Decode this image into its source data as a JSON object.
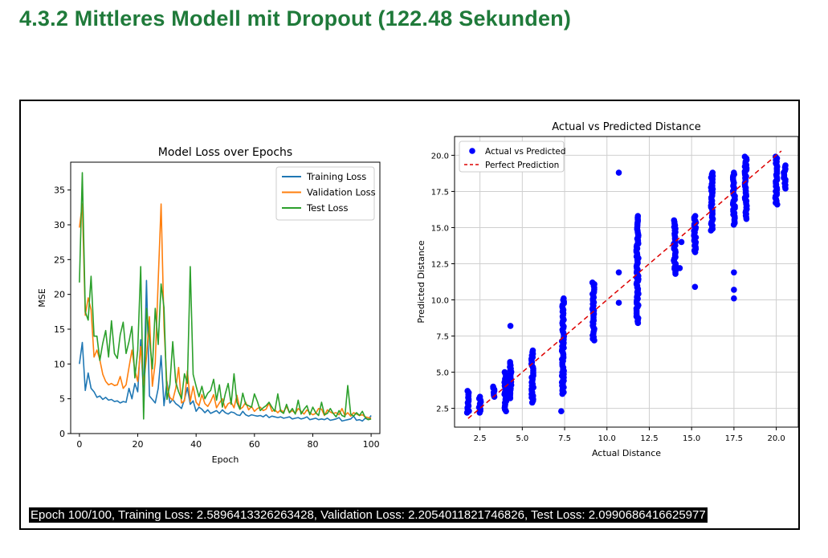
{
  "heading": "4.3.2 Mittleres Modell mit Dropout (122.48 Sekunden)",
  "status_line": "Epoch 100/100, Training Loss: 2.5896413326263428, Validation Loss: 2.2054011821746826, Test Loss: 2.0990686416625977",
  "chart_data": [
    {
      "type": "line",
      "title": "Model Loss over Epochs",
      "xlabel": "Epoch",
      "ylabel": "MSE",
      "xlim": [
        -3,
        103
      ],
      "ylim": [
        0,
        39
      ],
      "xticks": [
        0,
        20,
        40,
        60,
        80,
        100
      ],
      "yticks": [
        0,
        5,
        10,
        15,
        20,
        25,
        30,
        35
      ],
      "legend_position": "top-right",
      "grid": false,
      "series": [
        {
          "name": "Training Loss",
          "color": "#1f77b4",
          "values": [
            10.0,
            13.1,
            6.2,
            8.7,
            6.5,
            6.0,
            5.2,
            5.4,
            4.9,
            5.2,
            4.8,
            4.9,
            4.6,
            4.7,
            4.4,
            4.6,
            4.5,
            6.5,
            5.0,
            7.2,
            6.0,
            13.5,
            5.4,
            22.0,
            5.4,
            4.9,
            4.4,
            6.5,
            11.2,
            4.0,
            7.5,
            4.4,
            4.9,
            4.3,
            4.0,
            3.6,
            4.9,
            6.6,
            4.2,
            4.7,
            3.2,
            3.8,
            3.5,
            3.0,
            3.4,
            2.9,
            3.1,
            3.3,
            2.9,
            3.4,
            3.0,
            2.8,
            3.1,
            3.0,
            2.7,
            2.6,
            3.2,
            2.7,
            2.5,
            2.7,
            2.6,
            2.5,
            2.6,
            2.4,
            2.7,
            2.3,
            2.5,
            2.4,
            2.3,
            2.4,
            2.2,
            2.3,
            2.4,
            2.1,
            2.2,
            2.3,
            2.1,
            2.2,
            2.4,
            2.0,
            2.1,
            2.2,
            2.0,
            2.1,
            2.0,
            2.2,
            1.9,
            2.0,
            2.1,
            2.3,
            1.8,
            1.9,
            2.0,
            2.1,
            2.5,
            1.9,
            2.0,
            1.8,
            2.2,
            2.0,
            2.6
          ]
        },
        {
          "name": "Validation Loss",
          "color": "#ff7f0e",
          "values": [
            29.6,
            33.0,
            17.0,
            19.5,
            17.8,
            11.0,
            12.0,
            10.6,
            8.5,
            7.5,
            7.0,
            7.2,
            6.9,
            7.0,
            8.2,
            6.5,
            7.0,
            9.5,
            12.0,
            9.1,
            7.5,
            12.5,
            7.0,
            11.0,
            16.8,
            6.8,
            10.2,
            22.0,
            33.0,
            15.5,
            6.9,
            5.2,
            4.8,
            6.5,
            9.5,
            4.4,
            4.7,
            9.0,
            4.6,
            6.8,
            4.5,
            4.0,
            5.6,
            4.3,
            3.9,
            4.6,
            5.6,
            3.7,
            4.4,
            5.0,
            3.6,
            4.3,
            4.5,
            3.7,
            5.5,
            3.5,
            3.8,
            4.5,
            3.4,
            3.9,
            3.2,
            3.6,
            3.8,
            3.3,
            3.5,
            4.4,
            3.2,
            3.4,
            3.0,
            3.4,
            3.1,
            3.9,
            3.0,
            3.3,
            2.9,
            3.6,
            3.2,
            2.8,
            3.4,
            3.0,
            2.7,
            2.9,
            3.6,
            3.5,
            2.6,
            3.4,
            3.1,
            2.9,
            3.0,
            2.7,
            3.6,
            2.6,
            3.0,
            2.5,
            3.0,
            2.8,
            2.6,
            2.7,
            2.4,
            2.3,
            2.2
          ]
        },
        {
          "name": "Test Loss",
          "color": "#2ca02c",
          "values": [
            21.7,
            37.5,
            17.5,
            16.3,
            22.6,
            14.0,
            14.0,
            10.5,
            13.0,
            14.8,
            11.0,
            16.2,
            11.5,
            10.8,
            14.2,
            16.0,
            11.5,
            13.2,
            15.4,
            8.0,
            12.0,
            24.0,
            2.1,
            18.0,
            13.7,
            9.3,
            18.0,
            12.8,
            21.5,
            18.1,
            4.9,
            7.0,
            13.2,
            7.4,
            6.0,
            5.0,
            8.6,
            7.2,
            24.0,
            8.5,
            6.8,
            5.3,
            6.8,
            5.0,
            5.8,
            6.2,
            7.8,
            4.8,
            7.0,
            3.8,
            5.7,
            7.2,
            4.2,
            8.6,
            4.5,
            3.5,
            5.8,
            4.2,
            4.0,
            3.8,
            5.7,
            4.6,
            3.3,
            3.7,
            4.0,
            4.5,
            3.8,
            3.2,
            5.7,
            3.2,
            2.9,
            4.2,
            3.0,
            3.6,
            2.8,
            4.8,
            2.8,
            3.5,
            4.0,
            2.7,
            3.8,
            3.0,
            2.6,
            4.5,
            2.7,
            2.9,
            3.6,
            2.9,
            2.4,
            3.3,
            2.6,
            2.4,
            6.9,
            2.8,
            2.5,
            3.0,
            2.6,
            3.2,
            2.3,
            2.0,
            2.1
          ]
        }
      ]
    },
    {
      "type": "scatter",
      "title": "Actual vs Predicted Distance",
      "xlabel": "Actual Distance",
      "ylabel": "Predicted Distance",
      "xlim": [
        1.0,
        21.3
      ],
      "ylim": [
        1.2,
        21.3
      ],
      "xticks": [
        2.5,
        5.0,
        7.5,
        10.0,
        12.5,
        15.0,
        17.5,
        20.0
      ],
      "yticks": [
        2.5,
        5.0,
        7.5,
        10.0,
        12.5,
        15.0,
        17.5,
        20.0
      ],
      "grid": true,
      "legend_position": "top-left",
      "series": [
        {
          "name": "Actual vs Predicted",
          "color": "#0000ff",
          "clusters": [
            {
              "x": 1.8,
              "ymin": 2.2,
              "ymax": 3.7
            },
            {
              "x": 2.5,
              "ymin": 2.2,
              "ymax": 3.3
            },
            {
              "x": 3.3,
              "ymin": 3.3,
              "ymax": 4.0
            },
            {
              "x": 4.0,
              "ymin": 2.3,
              "ymax": 5.0
            },
            {
              "x": 4.3,
              "ymin": 3.2,
              "ymax": 5.7
            },
            {
              "x": 5.6,
              "ymin": 2.9,
              "ymax": 6.5
            },
            {
              "x": 7.4,
              "ymin": 3.5,
              "ymax": 10.1
            },
            {
              "x": 9.2,
              "ymin": 7.2,
              "ymax": 11.2
            },
            {
              "x": 11.8,
              "ymin": 8.4,
              "ymax": 15.8
            },
            {
              "x": 14.0,
              "ymin": 11.8,
              "ymax": 15.5
            },
            {
              "x": 15.2,
              "ymin": 13.3,
              "ymax": 15.8
            },
            {
              "x": 16.2,
              "ymin": 14.8,
              "ymax": 18.8
            },
            {
              "x": 17.5,
              "ymin": 15.2,
              "ymax": 18.8
            },
            {
              "x": 18.2,
              "ymin": 15.6,
              "ymax": 19.9
            },
            {
              "x": 20.0,
              "ymin": 16.6,
              "ymax": 19.9
            },
            {
              "x": 20.5,
              "ymin": 17.7,
              "ymax": 19.3
            }
          ],
          "points": [
            {
              "x": 7.3,
              "y": 2.3
            },
            {
              "x": 4.3,
              "y": 8.2
            },
            {
              "x": 10.7,
              "y": 18.8
            },
            {
              "x": 10.7,
              "y": 11.9
            },
            {
              "x": 10.7,
              "y": 9.8
            },
            {
              "x": 15.2,
              "y": 10.9
            },
            {
              "x": 17.5,
              "y": 11.9
            },
            {
              "x": 17.5,
              "y": 10.7
            },
            {
              "x": 17.5,
              "y": 10.1
            },
            {
              "x": 14.4,
              "y": 14.0
            },
            {
              "x": 14.3,
              "y": 12.2
            }
          ]
        },
        {
          "name": "Perfect Prediction",
          "color": "#dd0000",
          "style": "dashed",
          "x": [
            1.8,
            20.3
          ],
          "y": [
            1.8,
            20.3
          ]
        }
      ]
    }
  ]
}
